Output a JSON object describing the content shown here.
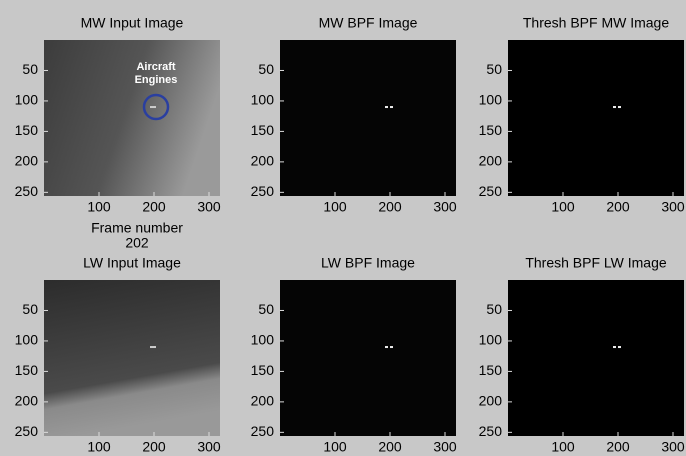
{
  "chart_data": [
    {
      "type": "image",
      "title": "MW Input Image",
      "xlim": [
        0,
        320
      ],
      "ylim": [
        256,
        0
      ],
      "xticks": [
        100,
        200,
        300
      ],
      "yticks": [
        50,
        100,
        150,
        200,
        250
      ],
      "annotation": [
        "Aircraft",
        "Engines"
      ]
    },
    {
      "type": "image",
      "title": "MW BPF Image",
      "xlim": [
        0,
        320
      ],
      "ylim": [
        256,
        0
      ],
      "xticks": [
        100,
        200,
        300
      ],
      "yticks": [
        50,
        100,
        150,
        200,
        250
      ]
    },
    {
      "type": "image",
      "title": "Thresh BPF MW Image",
      "xlim": [
        0,
        320
      ],
      "ylim": [
        256,
        0
      ],
      "xticks": [
        100,
        200,
        300
      ],
      "yticks": [
        50,
        100,
        150,
        200,
        250
      ]
    },
    {
      "type": "image",
      "title": "LW Input Image",
      "xlim": [
        0,
        320
      ],
      "ylim": [
        256,
        0
      ],
      "xticks": [
        100,
        200,
        300
      ],
      "yticks": [
        50,
        100,
        150,
        200,
        250
      ]
    },
    {
      "type": "image",
      "title": "LW BPF Image",
      "xlim": [
        0,
        320
      ],
      "ylim": [
        256,
        0
      ],
      "xticks": [
        100,
        200,
        300
      ],
      "yticks": [
        50,
        100,
        150,
        200,
        250
      ]
    },
    {
      "type": "image",
      "title": "Thresh BPF LW Image",
      "xlim": [
        0,
        320
      ],
      "ylim": [
        256,
        0
      ],
      "xticks": [
        100,
        200,
        300
      ],
      "yticks": [
        50,
        100,
        150,
        200,
        250
      ]
    }
  ],
  "frame_label": "Frame number",
  "frame_number": 202
}
